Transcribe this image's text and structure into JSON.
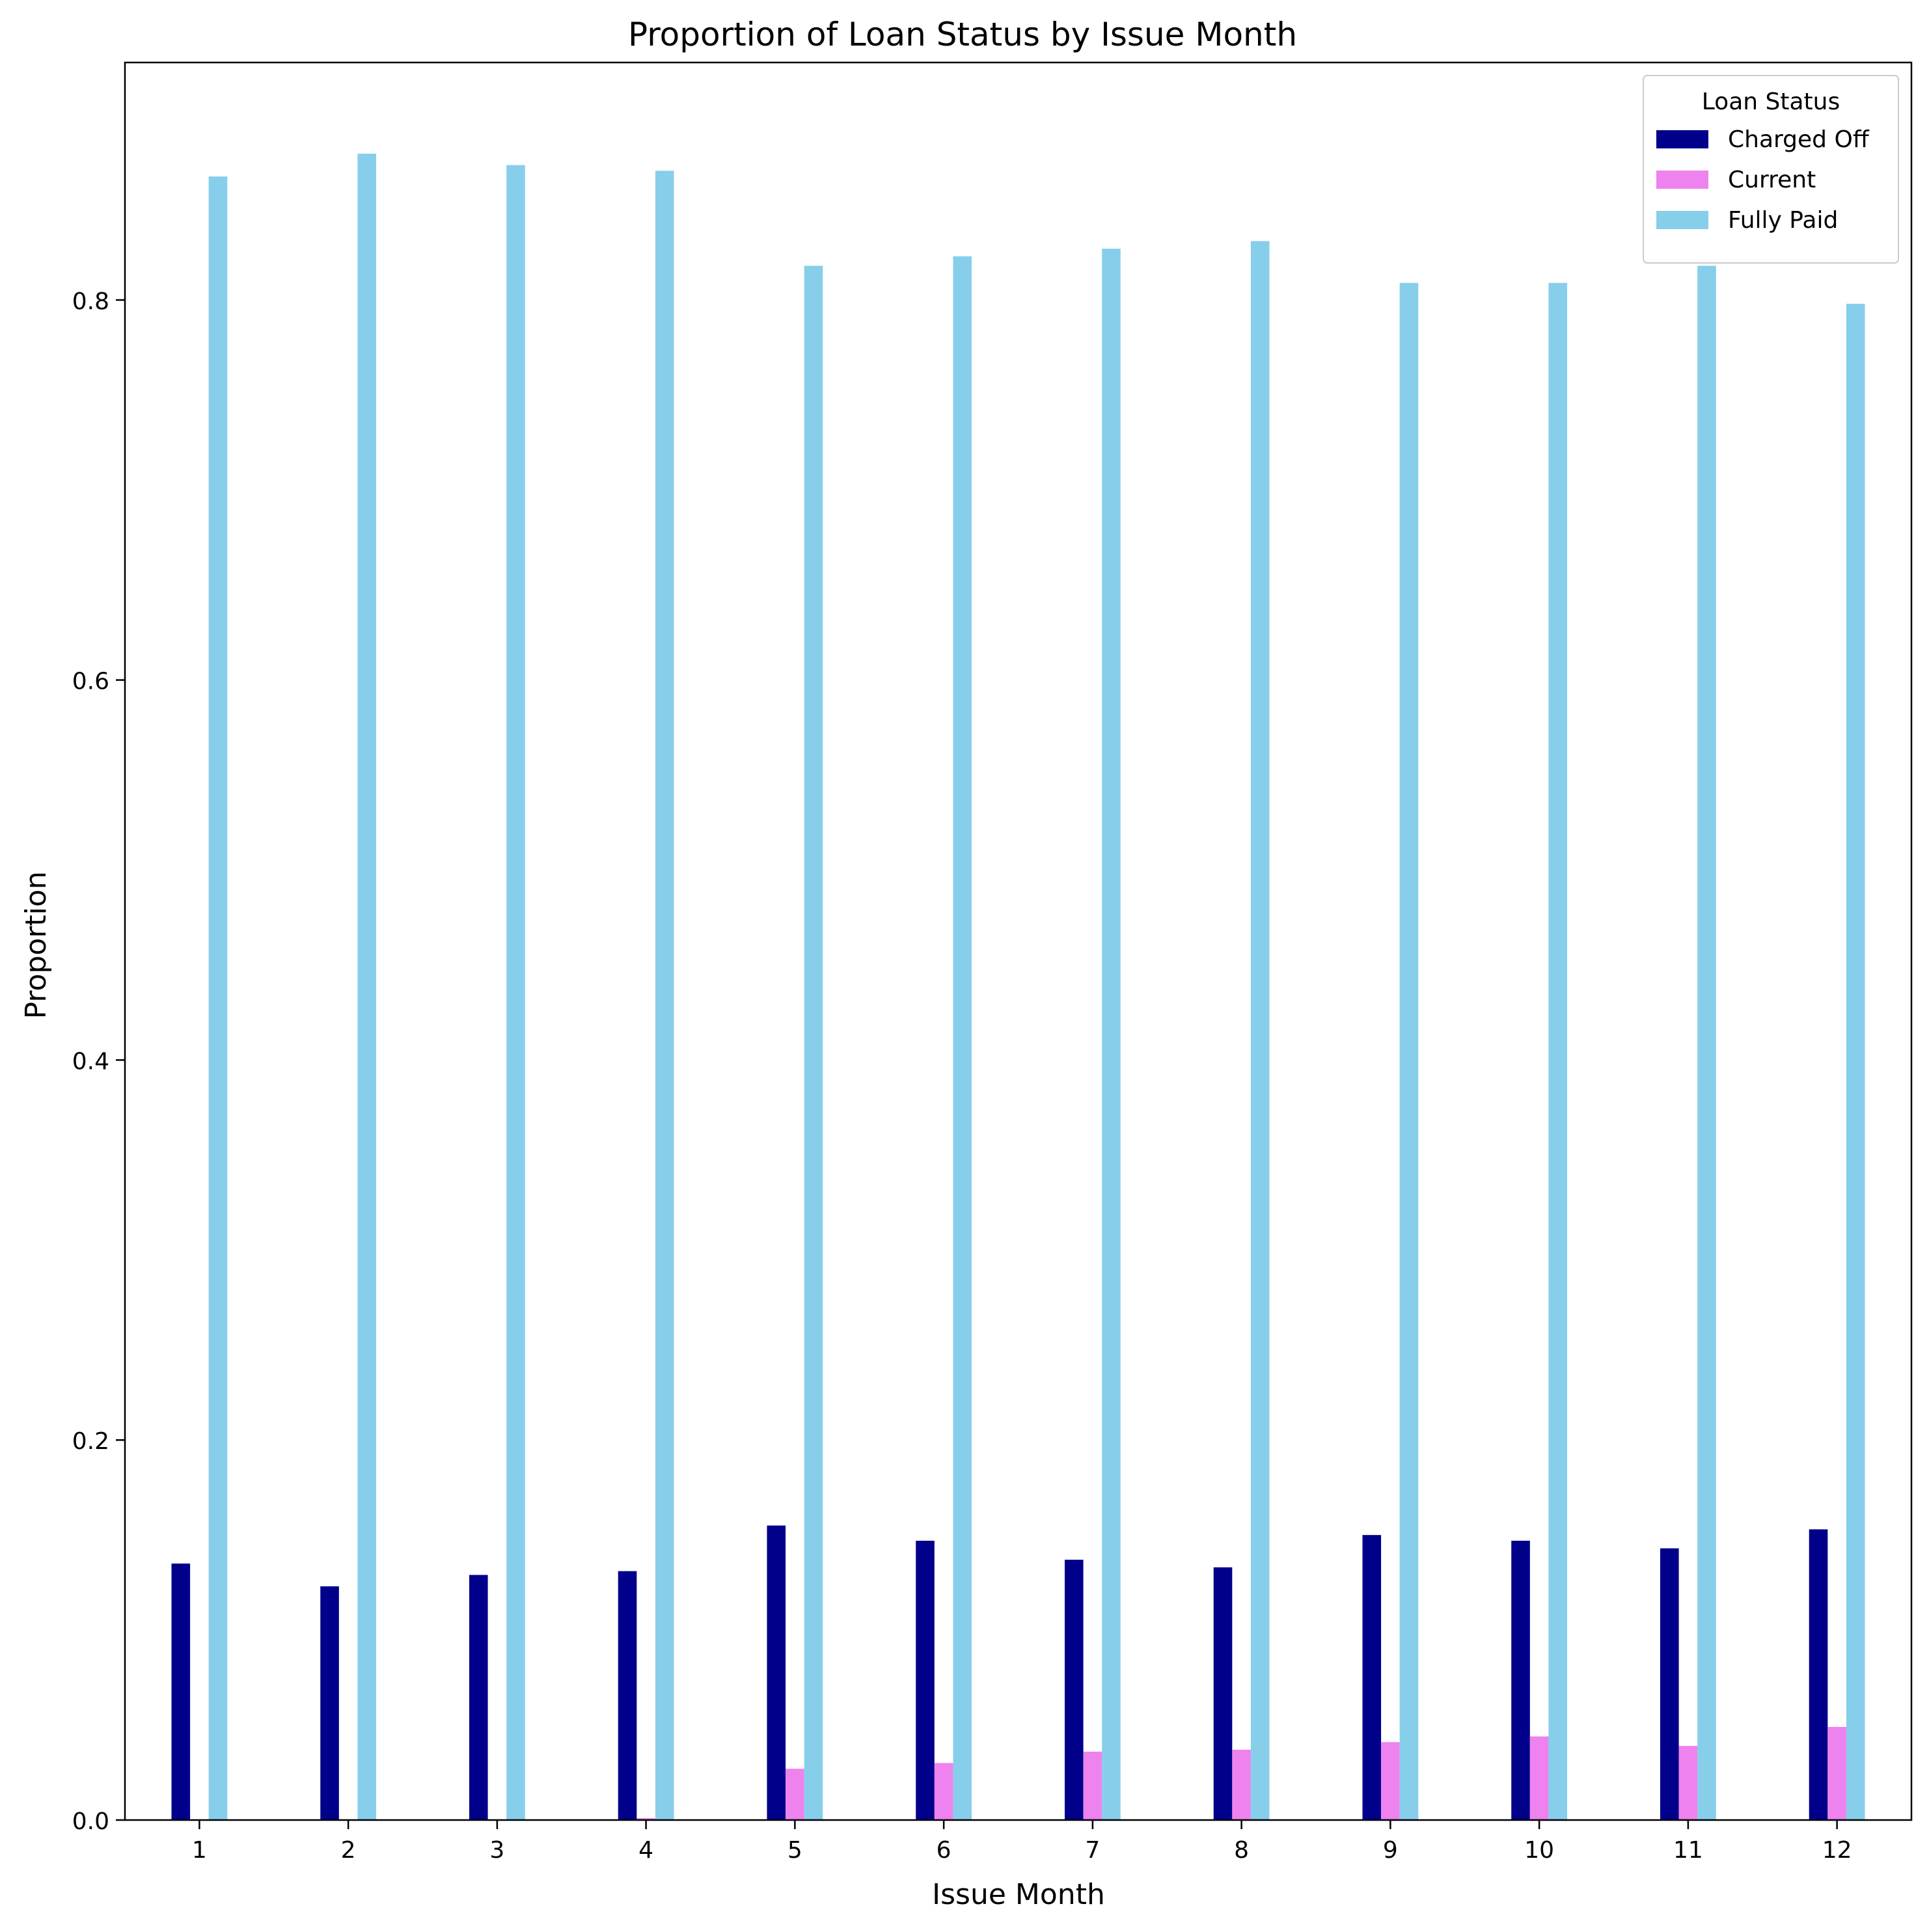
{
  "chart_data": {
    "type": "bar",
    "title": "Proportion of Loan Status by Issue Month",
    "xlabel": "Issue Month",
    "ylabel": "Proportion",
    "categories": [
      "1",
      "2",
      "3",
      "4",
      "5",
      "6",
      "7",
      "8",
      "9",
      "10",
      "11",
      "12"
    ],
    "ylim": [
      0,
      0.925
    ],
    "yticks": [
      0.0,
      0.2,
      0.4,
      0.6,
      0.8
    ],
    "ytick_labels": [
      "0.0",
      "0.2",
      "0.4",
      "0.6",
      "0.8"
    ],
    "grid": false,
    "legend": {
      "title": "Loan Status",
      "position": "top-right"
    },
    "series": [
      {
        "name": "Charged Off",
        "color": "#00008b",
        "values": [
          0.135,
          0.123,
          0.129,
          0.131,
          0.155,
          0.147,
          0.137,
          0.133,
          0.15,
          0.147,
          0.143,
          0.153
        ]
      },
      {
        "name": "Current",
        "color": "#ee82ee",
        "values": [
          0.0,
          0.0,
          0.0,
          0.001,
          0.027,
          0.03,
          0.036,
          0.037,
          0.041,
          0.044,
          0.039,
          0.049
        ]
      },
      {
        "name": "Fully Paid",
        "color": "#87ceeb",
        "values": [
          0.865,
          0.877,
          0.871,
          0.868,
          0.818,
          0.823,
          0.827,
          0.831,
          0.809,
          0.809,
          0.818,
          0.798
        ]
      }
    ]
  }
}
